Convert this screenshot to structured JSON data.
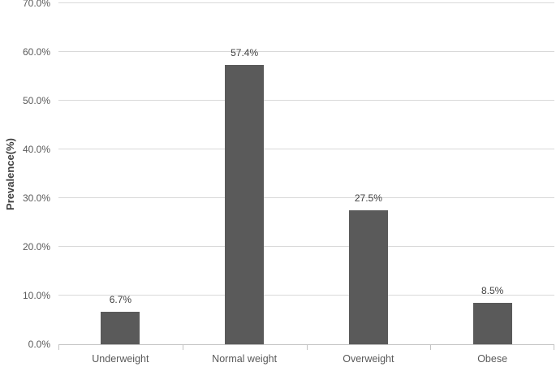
{
  "figure": {
    "background": "#ffffff"
  },
  "chart_data": {
    "type": "bar",
    "title": "",
    "categories": [
      "Underweight",
      "Normal weight",
      "Overweight",
      "Obese"
    ],
    "values": [
      6.7,
      57.4,
      27.5,
      8.5
    ],
    "data_labels": [
      "6.7%",
      "57.4%",
      "27.5%",
      "8.5%"
    ],
    "xlabel": "",
    "ylabel": "Prevalence(%)",
    "ylim": [
      0,
      70
    ],
    "ytick_step": 10,
    "ytick_labels": [
      "0.0%",
      "10.0%",
      "20.0%",
      "30.0%",
      "40.0%",
      "50.0%",
      "60.0%",
      "70.0%"
    ],
    "grid": "horizontal",
    "legend": "none",
    "colors": {
      "bar_fill": "#5a5a5a",
      "gridline": "#d9d9d9",
      "axis_line": "#c3c3c3",
      "tick_label_text": "#595959",
      "category_label_text": "#595959",
      "data_label_text": "#404040",
      "axis_title_text": "#3f3f3f"
    }
  }
}
